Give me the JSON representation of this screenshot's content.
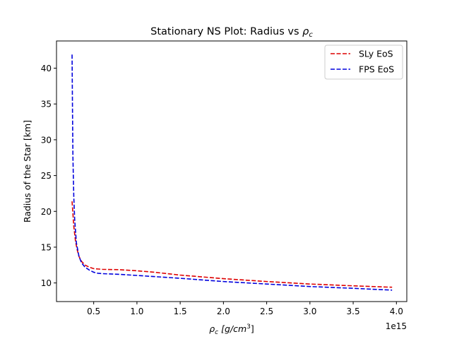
{
  "chart_data": {
    "type": "line",
    "title_main": "Stationary NS Plot: Radius vs ",
    "title_symbol": "ρ",
    "title_sub": "c",
    "xlabel": {
      "symbol": "ρ",
      "sub": "c",
      "units_pre": " [g/cm",
      "units_sup": "3",
      "units_post": "]"
    },
    "ylabel": "Radius of the Star [km]",
    "x_offset_text": "1e15",
    "xlim": [
      0.07,
      4.12
    ],
    "ylim": [
      7.4,
      43.8
    ],
    "x_tick_values": [
      0.5,
      1.0,
      1.5,
      2.0,
      2.5,
      3.0,
      3.5,
      4.0
    ],
    "x_tick_labels": [
      "0.5",
      "1.0",
      "1.5",
      "2.0",
      "2.5",
      "3.0",
      "3.5",
      "4.0"
    ],
    "y_tick_values": [
      10,
      15,
      20,
      25,
      30,
      35,
      40
    ],
    "y_tick_labels": [
      "10",
      "15",
      "20",
      "25",
      "30",
      "35",
      "40"
    ],
    "grid": false,
    "legend_position": "top-right",
    "series": [
      {
        "name": "SLy EoS",
        "color": "#dd0000",
        "dash": "dashed",
        "x": [
          0.25,
          0.27,
          0.29,
          0.31,
          0.33,
          0.36,
          0.4,
          0.45,
          0.5,
          0.55,
          0.6,
          0.8,
          1.0,
          1.2,
          1.5,
          2.0,
          2.5,
          3.0,
          3.5,
          3.95
        ],
        "y": [
          21.4,
          17.9,
          15.8,
          14.6,
          13.7,
          13.0,
          12.5,
          12.2,
          12.0,
          11.95,
          11.9,
          11.85,
          11.7,
          11.5,
          11.1,
          10.6,
          10.2,
          9.85,
          9.6,
          9.4
        ]
      },
      {
        "name": "FPS EoS",
        "color": "#0000dd",
        "dash": "dashed",
        "x": [
          0.25,
          0.255,
          0.26,
          0.27,
          0.28,
          0.3,
          0.33,
          0.36,
          0.4,
          0.45,
          0.5,
          0.55,
          0.6,
          0.8,
          1.0,
          1.5,
          2.0,
          2.5,
          3.0,
          3.5,
          3.95
        ],
        "y": [
          41.9,
          34.0,
          27.5,
          22.0,
          18.9,
          15.6,
          13.7,
          12.8,
          12.2,
          11.8,
          11.5,
          11.35,
          11.3,
          11.2,
          11.05,
          10.65,
          10.2,
          9.85,
          9.5,
          9.25,
          9.0
        ]
      }
    ]
  }
}
